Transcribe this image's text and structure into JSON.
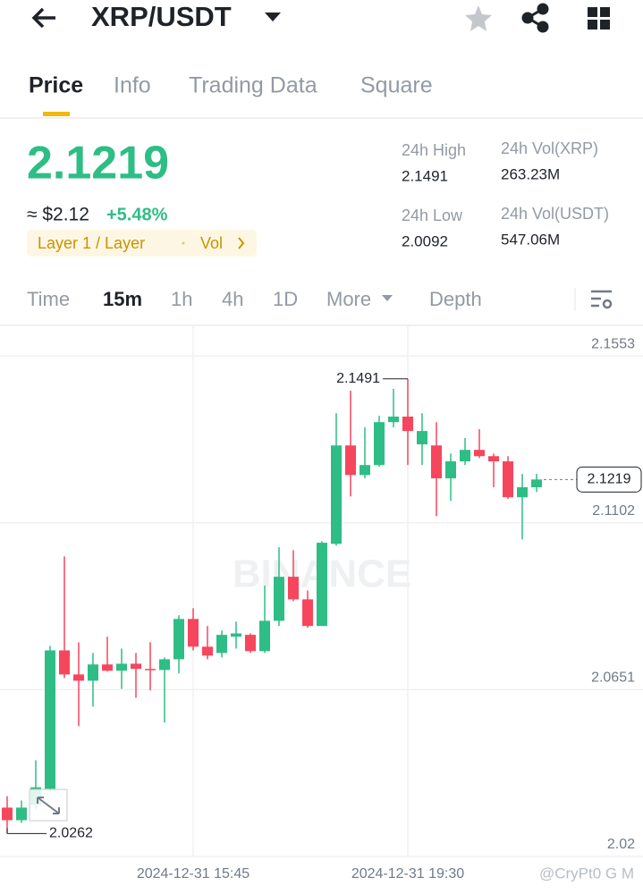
{
  "header": {
    "title": "XRP/USDT"
  },
  "tabs": [
    "Price",
    "Info",
    "Trading Data",
    "Square"
  ],
  "price": {
    "last": "2.1219",
    "fiat": "≈ $2.12",
    "change": "+5.48%",
    "tags": [
      "Layer 1 / Layer",
      "Vol"
    ]
  },
  "stats": [
    {
      "label": "24h High",
      "value": "2.1491"
    },
    {
      "label": "24h Vol(XRP)",
      "value": "263.23M"
    },
    {
      "label": "24h Low",
      "value": "2.0092"
    },
    {
      "label": "24h Vol(USDT)",
      "value": "547.06M"
    }
  ],
  "intervals": [
    "Time",
    "15m",
    "1h",
    "4h",
    "1D",
    "More",
    "Depth"
  ],
  "chart_data": {
    "type": "candlestick",
    "categories": [
      null,
      null,
      null,
      null,
      null,
      null,
      null,
      null,
      null,
      null,
      null,
      null,
      null,
      "2024-12-31 15:45",
      null,
      null,
      null,
      null,
      null,
      null,
      null,
      null,
      null,
      null,
      null,
      null,
      null,
      null,
      "2024-12-31 19:30",
      null,
      null,
      null,
      null,
      null,
      null,
      null,
      null,
      null
    ],
    "open": [
      2.0332,
      2.0298,
      2.0339,
      2.0383,
      2.0757,
      2.0692,
      2.0675,
      2.0719,
      2.0702,
      2.0721,
      2.0707,
      2.0704,
      2.0733,
      2.0842,
      2.0767,
      2.075,
      2.0794,
      2.0799,
      2.0755,
      2.0837,
      2.0956,
      2.0895,
      2.0823,
      2.1045,
      2.1311,
      2.1231,
      2.1258,
      2.1374,
      2.1389,
      2.1314,
      2.1311,
      2.1222,
      2.1268,
      2.1299,
      2.1282,
      2.1268,
      2.1171,
      2.1198
    ],
    "high": [
      2.0363,
      2.0351,
      2.046,
      2.0769,
      2.1011,
      2.0779,
      2.075,
      2.0794,
      2.0762,
      2.075,
      2.0779,
      2.0738,
      2.0852,
      2.0871,
      2.0823,
      2.0811,
      2.0835,
      2.0803,
      2.0932,
      2.1036,
      2.1028,
      2.0919,
      2.1052,
      2.1398,
      2.1459,
      2.136,
      2.1391,
      2.1464,
      2.1491,
      2.1398,
      2.1374,
      2.1289,
      2.1331,
      2.1355,
      2.1289,
      2.1282,
      2.1234,
      2.1234
    ],
    "low": [
      2.0262,
      2.0291,
      2.0327,
      2.0375,
      2.0682,
      2.0552,
      2.0605,
      2.07,
      2.0653,
      2.0629,
      2.0649,
      2.0562,
      2.0695,
      2.0757,
      2.0733,
      2.0738,
      2.0762,
      2.075,
      2.075,
      2.0823,
      2.089,
      2.0818,
      2.0823,
      2.104,
      2.1173,
      2.1222,
      2.1253,
      2.136,
      2.1258,
      2.1258,
      2.112,
      2.1161,
      2.1258,
      2.1277,
      2.1198,
      2.1166,
      2.1057,
      2.1185
    ],
    "close": [
      2.0298,
      2.0332,
      2.0387,
      2.0757,
      2.0692,
      2.0675,
      2.0719,
      2.0702,
      2.0721,
      2.0707,
      2.0704,
      2.0733,
      2.0842,
      2.0767,
      2.0743,
      2.0799,
      2.0803,
      2.0755,
      2.0837,
      2.0956,
      2.0895,
      2.0823,
      2.1048,
      2.1311,
      2.1231,
      2.1258,
      2.1374,
      2.1389,
      2.135,
      2.135,
      2.1222,
      2.1268,
      2.1299,
      2.1282,
      2.1268,
      2.1171,
      2.1198,
      2.1219
    ],
    "up_color": "#2ebd85",
    "down_color": "#f6465d",
    "ylim": [
      2.02,
      2.1633
    ],
    "yticks": [
      2.02,
      2.0651,
      2.1102,
      2.1553
    ],
    "grid": true,
    "max_label": 2.1491,
    "min_label": 2.0262,
    "last_price": 2.1219,
    "watermark": "BINANCE"
  },
  "watermark": "@CryPt0 G M"
}
